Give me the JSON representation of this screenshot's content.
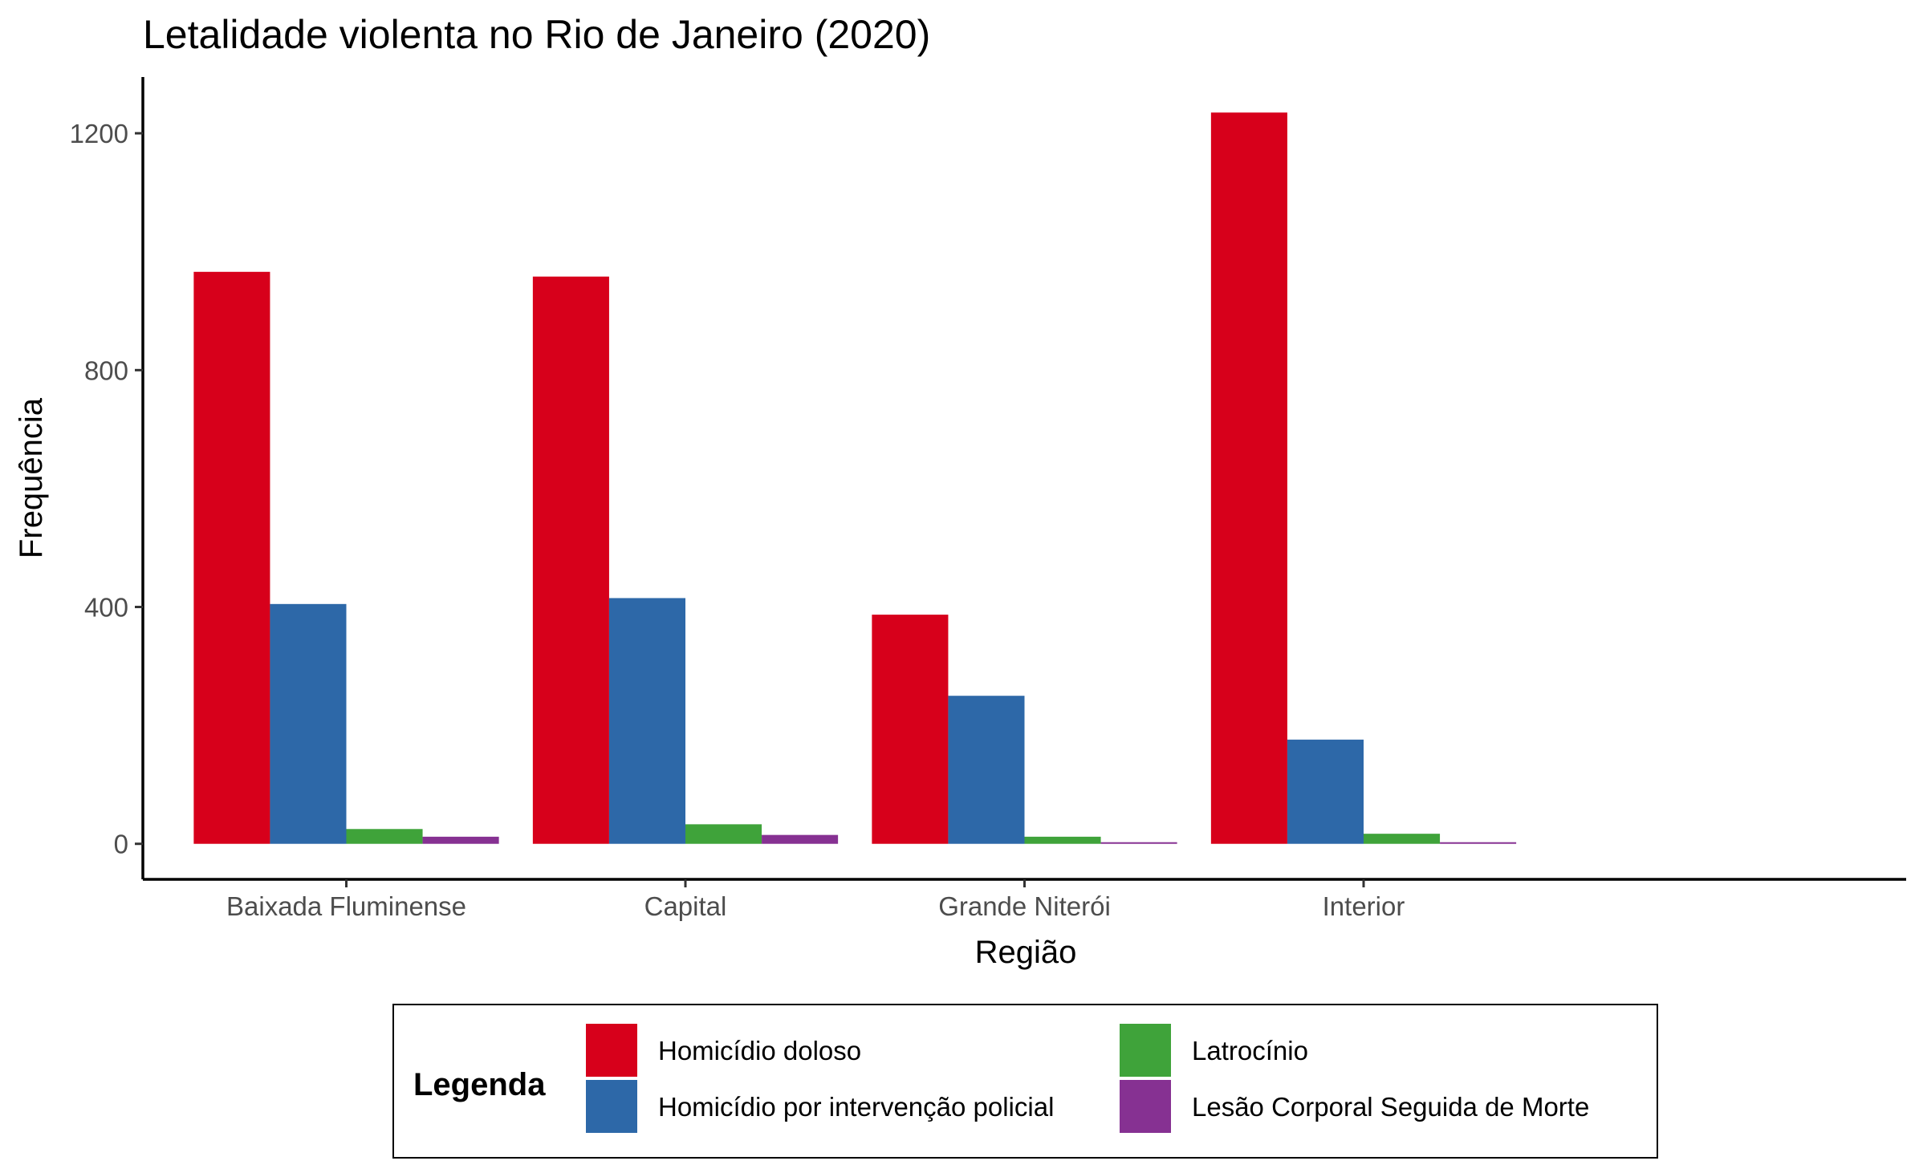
{
  "chart_data": {
    "type": "bar",
    "title": "Letalidade violenta no Rio de Janeiro (2020)",
    "xlabel": "Região",
    "ylabel": "Frequência",
    "categories": [
      "Baixada Fluminense",
      "Capital",
      "Grande Niterói",
      "Interior"
    ],
    "series": [
      {
        "name": "Homicídio doloso",
        "color": "#D7001B",
        "values": [
          966,
          958,
          387,
          1235
        ]
      },
      {
        "name": "Homicídio por intervenção policial",
        "color": "#2D68A8",
        "values": [
          405,
          415,
          250,
          176
        ]
      },
      {
        "name": "Latrocínio",
        "color": "#3FA33A",
        "values": [
          25,
          33,
          12,
          17
        ]
      },
      {
        "name": "Lesão Corporal Seguida de Morte",
        "color": "#863192",
        "values": [
          12,
          15,
          2,
          2
        ]
      }
    ],
    "ylim": [
      -60,
      1295
    ],
    "yticks": [
      0,
      400,
      800,
      1200
    ],
    "grid": false,
    "legend": {
      "title": "Legenda",
      "position": "bottom"
    }
  }
}
